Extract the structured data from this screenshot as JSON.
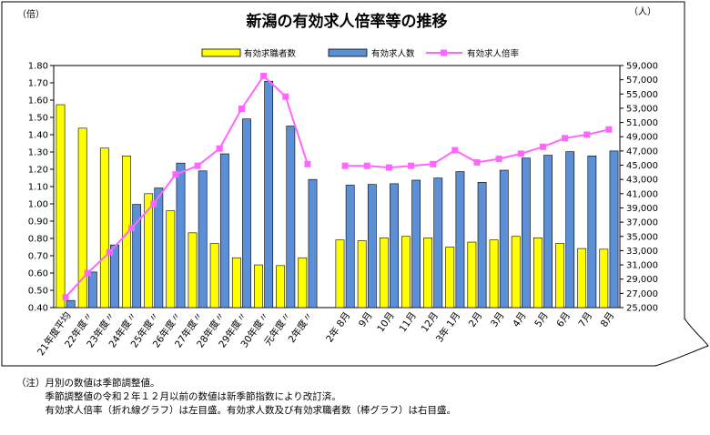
{
  "chart_data": {
    "type": "bar+line",
    "title": "新潟の有効求人倍率等の推移",
    "left_unit": "（倍）",
    "right_unit": "（人）",
    "left_axis": {
      "min": 0.4,
      "max": 1.8,
      "step": 0.1
    },
    "right_axis": {
      "min": 25000,
      "max": 59000,
      "step": 2000
    },
    "legend": [
      {
        "label": "有効求職者数",
        "color": "#ffff00"
      },
      {
        "label": "有効求人数",
        "color": "#5b8fd6"
      },
      {
        "label": "有効求人倍率",
        "color": "#ff66ff"
      }
    ],
    "segments": [
      {
        "categories": [
          "21年度平均",
          "22年度〃",
          "23年度〃",
          "24年度〃",
          "25年度〃",
          "26年度〃",
          "27年度〃",
          "28年度〃",
          "29年度〃",
          "30年度〃",
          "元年度〃",
          "2年度〃"
        ],
        "seekers": [
          53500,
          50200,
          47400,
          46300,
          41000,
          38600,
          35500,
          34000,
          32000,
          31000,
          30900,
          32000
        ],
        "openings": [
          26000,
          30000,
          33800,
          39500,
          41800,
          45300,
          44200,
          46600,
          51500,
          56800,
          50500,
          43000
        ],
        "ratio": [
          0.46,
          0.6,
          0.72,
          0.86,
          1.0,
          1.17,
          1.22,
          1.32,
          1.55,
          1.74,
          1.62,
          1.23
        ]
      },
      {
        "categories": [
          "2年 8月",
          "9月",
          "10月",
          "11月",
          "12月",
          "3年 1月",
          "2月",
          "3月",
          "4月",
          "5月",
          "6月",
          "7月",
          "8月"
        ],
        "seekers": [
          34500,
          34400,
          34800,
          35000,
          34800,
          33500,
          34200,
          34500,
          35000,
          34800,
          34000,
          33300,
          33200
        ],
        "openings": [
          42200,
          42300,
          42400,
          42900,
          43200,
          44100,
          42600,
          44300,
          46000,
          46400,
          46900,
          46300,
          47000
        ],
        "ratio": [
          1.22,
          1.22,
          1.21,
          1.22,
          1.23,
          1.31,
          1.24,
          1.26,
          1.29,
          1.33,
          1.38,
          1.4,
          1.43
        ]
      }
    ]
  },
  "notes": [
    "（注）月別の数値は季節調整値。",
    "　　　季節調整値の令和２年１２月以前の数値は新季節指数により改訂済。",
    "　　　有効求人倍率（折れ線グラフ）は左目盛。有効求人数及び有効求職者数（棒グラフ）は右目盛。"
  ]
}
